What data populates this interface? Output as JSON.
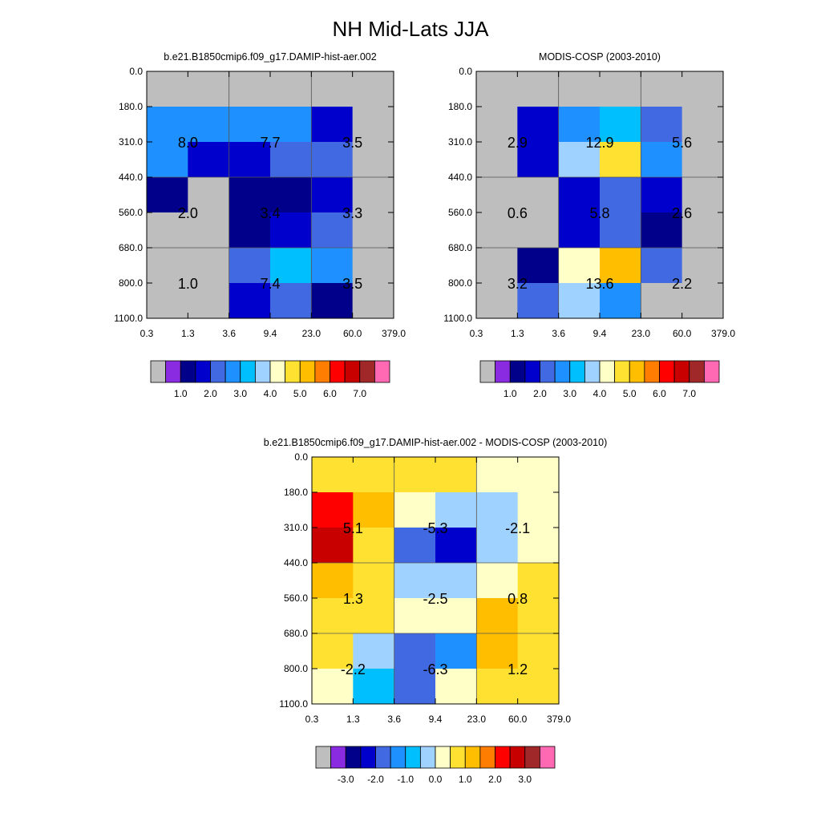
{
  "figure": {
    "title": "NH Mid-Lats JJA"
  },
  "colors": {
    "missing": "#bebebe",
    "abs_palette": [
      "#8a2be2",
      "#00008b",
      "#0000cd",
      "#4169e1",
      "#1e90ff",
      "#00bfff",
      "#a0d2ff",
      "#ffffc8",
      "#ffe132",
      "#ffbf00",
      "#ff7d00",
      "#ff0000",
      "#c80000",
      "#a02828",
      "#ff69b4"
    ],
    "diff_palette": [
      "#8a2be2",
      "#00008b",
      "#0000cd",
      "#4169e1",
      "#1e90ff",
      "#00bfff",
      "#a0d2ff",
      "#ffffc8",
      "#ffe132",
      "#ffbf00",
      "#ff7d00",
      "#ff0000",
      "#c80000",
      "#a02828",
      "#ff69b4"
    ]
  },
  "chart_data": [
    {
      "type": "heatmap",
      "title": "b.e21.B1850cmip6.f09_g17.DAMIP-hist-aer.002",
      "x_ticks": [
        "0.3",
        "1.3",
        "3.6",
        "9.4",
        "23.0",
        "60.0",
        "379.0"
      ],
      "y_ticks": [
        "0.0",
        "180.0",
        "310.0",
        "440.0",
        "560.0",
        "680.0",
        "800.0",
        "1100.0"
      ],
      "cells": [
        [
          "M",
          "M",
          "M",
          "M",
          "M",
          "M"
        ],
        [
          4,
          4,
          4,
          4,
          2,
          "M"
        ],
        [
          4,
          2,
          2,
          3,
          3,
          "M"
        ],
        [
          1,
          "M",
          1,
          1,
          2,
          "M"
        ],
        [
          "M",
          "M",
          1,
          2,
          3,
          "M"
        ],
        [
          "M",
          "M",
          3,
          5,
          4,
          "M"
        ],
        [
          "M",
          "M",
          2,
          3,
          1,
          "M"
        ]
      ],
      "annotations": [
        [
          "8.0",
          "7.7",
          "3.5"
        ],
        [
          "2.0",
          "3.4",
          "3.3"
        ],
        [
          "1.0",
          "7.4",
          "3.5"
        ]
      ],
      "colorbar": {
        "labels": [
          "1.0",
          "2.0",
          "3.0",
          "4.0",
          "5.0",
          "6.0",
          "7.0"
        ],
        "palette": "abs_palette"
      }
    },
    {
      "type": "heatmap",
      "title": "MODIS-COSP (2003-2010)",
      "x_ticks": [
        "0.3",
        "1.3",
        "3.6",
        "9.4",
        "23.0",
        "60.0",
        "379.0"
      ],
      "y_ticks": [
        "0.0",
        "180.0",
        "310.0",
        "440.0",
        "560.0",
        "680.0",
        "800.0",
        "1100.0"
      ],
      "cells": [
        [
          "M",
          "M",
          "M",
          "M",
          "M",
          "M"
        ],
        [
          "M",
          2,
          4,
          5,
          3,
          "M"
        ],
        [
          "M",
          2,
          6,
          8,
          4,
          "M"
        ],
        [
          "M",
          "M",
          2,
          3,
          2,
          "M"
        ],
        [
          "M",
          "M",
          2,
          3,
          1,
          "M"
        ],
        [
          "M",
          1,
          7,
          9,
          3,
          "M"
        ],
        [
          "M",
          3,
          6,
          4,
          "M",
          "M"
        ]
      ],
      "annotations": [
        [
          "2.9",
          "12.9",
          "5.6"
        ],
        [
          "0.6",
          "5.8",
          "2.6"
        ],
        [
          "3.2",
          "13.6",
          "2.2"
        ]
      ],
      "colorbar": {
        "labels": [
          "1.0",
          "2.0",
          "3.0",
          "4.0",
          "5.0",
          "6.0",
          "7.0"
        ],
        "palette": "abs_palette"
      }
    },
    {
      "type": "heatmap",
      "title": "b.e21.B1850cmip6.f09_g17.DAMIP-hist-aer.002 - MODIS-COSP (2003-2010)",
      "x_ticks": [
        "0.3",
        "1.3",
        "3.6",
        "9.4",
        "23.0",
        "60.0",
        "379.0"
      ],
      "y_ticks": [
        "0.0",
        "180.0",
        "310.0",
        "440.0",
        "560.0",
        "680.0",
        "800.0",
        "1100.0"
      ],
      "cells": [
        [
          8,
          8,
          8,
          8,
          7,
          7
        ],
        [
          11,
          9,
          7,
          6,
          6,
          7
        ],
        [
          12,
          8,
          3,
          2,
          6,
          7
        ],
        [
          9,
          8,
          6,
          6,
          7,
          8
        ],
        [
          8,
          8,
          7,
          7,
          9,
          8
        ],
        [
          8,
          6,
          3,
          4,
          9,
          8
        ],
        [
          7,
          5,
          3,
          7,
          8,
          8
        ]
      ],
      "annotations": [
        [
          "5.1",
          "-5.3",
          "-2.1"
        ],
        [
          "1.3",
          "-2.5",
          "0.8"
        ],
        [
          "-2.2",
          "-6.3",
          "1.2"
        ]
      ],
      "colorbar": {
        "labels": [
          "-3.0",
          "-2.0",
          "-1.0",
          "0.0",
          "1.0",
          "2.0",
          "3.0"
        ],
        "palette": "diff_palette"
      }
    }
  ]
}
